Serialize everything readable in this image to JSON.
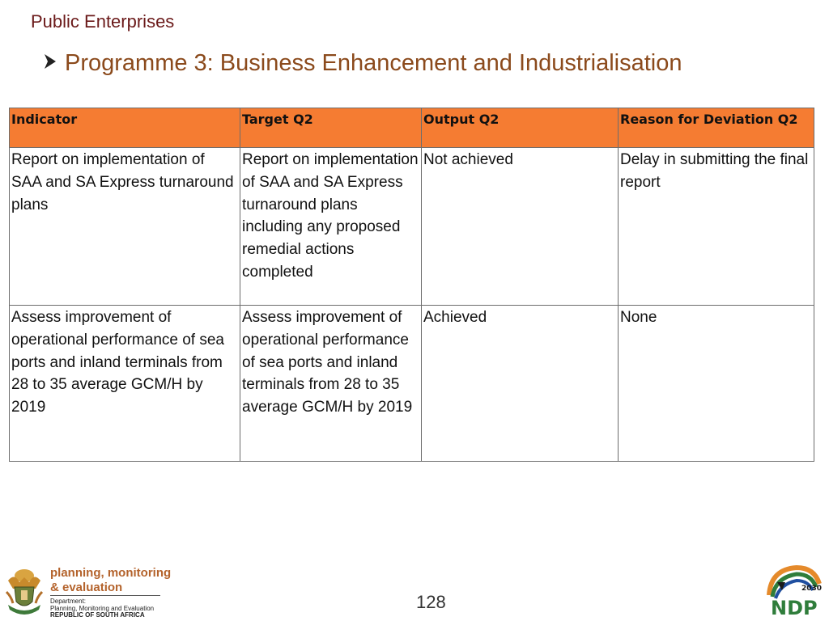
{
  "header": {
    "section": "Public Enterprises",
    "heading": "Programme 3: Business Enhancement and Industrialisation"
  },
  "table": {
    "columns": [
      "Indicator",
      "Target Q2",
      "Output Q2",
      "Reason for Deviation Q2"
    ],
    "rows": [
      {
        "indicator": "Report on implementation of SAA and SA Express turnaround plans",
        "target": "Report on implementation of SAA and SA Express turnaround plans including any proposed remedial actions completed",
        "output": "Not achieved",
        "reason": "Delay in submitting the final report"
      },
      {
        "indicator": "Assess improvement of operational performance of sea ports and inland terminals from 28 to 35 average GCM/H by 2019",
        "target": "Assess improvement of operational performance of sea ports and inland terminals from 28 to 35 average GCM/H by 2019",
        "output": "Achieved",
        "reason": "None"
      }
    ]
  },
  "footer": {
    "page_number": "128",
    "dpme": {
      "line1": "planning, monitoring",
      "line2": "& evaluation",
      "dept_label": "Department:",
      "dept_name": "Planning, Monitoring and Evaluation",
      "country": "REPUBLIC OF SOUTH AFRICA"
    },
    "ndp": {
      "year": "2030",
      "text": "NDP"
    }
  },
  "colors": {
    "header_fill": "#f57c32",
    "heading_text": "#8b4a1c",
    "section_text": "#6b1a1a"
  }
}
